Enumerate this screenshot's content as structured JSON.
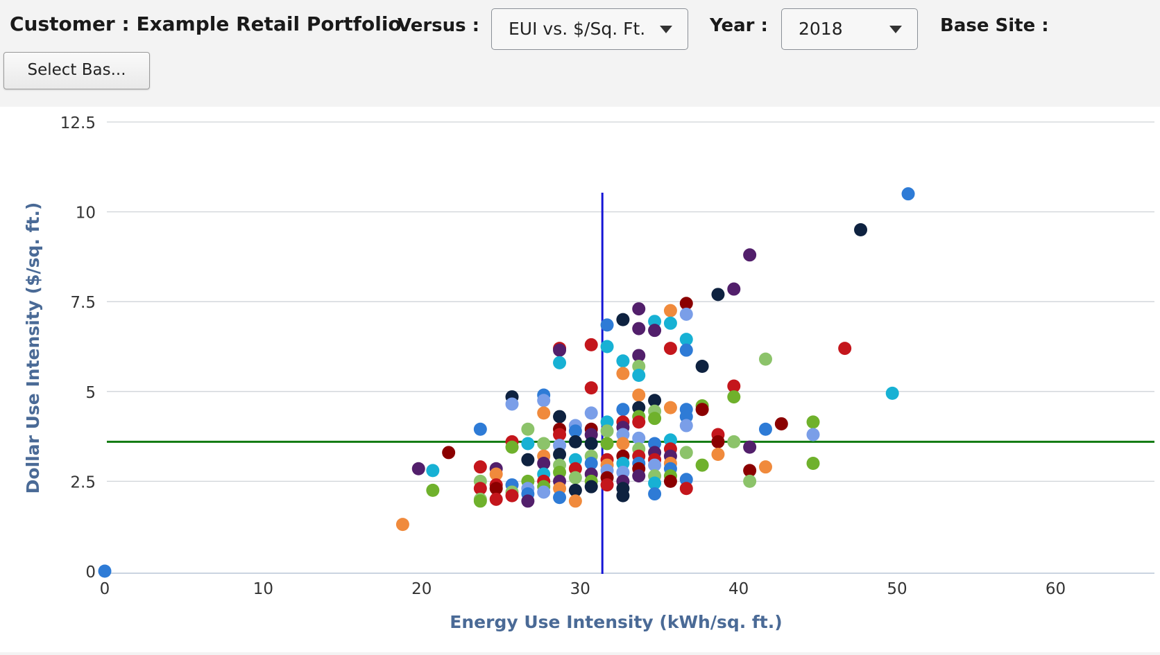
{
  "header": {
    "customer_label": "Customer : Example Retail Portfolio",
    "versus_label": "Versus :",
    "versus_value": "EUI vs. $/Sq. Ft.",
    "year_label": "Year :",
    "year_value": "2018",
    "base_site_label": "Base Site :",
    "select_button": "Select Bas..."
  },
  "colors": {
    "reference_vertical": "#1515d6",
    "reference_horizontal": "#117a11",
    "axis_title": "#4a6a96",
    "palette": [
      "#2e7bd6",
      "#0e2240",
      "#521f6b",
      "#c4161c",
      "#8b0000",
      "#f08a3c",
      "#8cc36a",
      "#17b1d4",
      "#7a9ee8",
      "#6fb12c"
    ]
  },
  "chart_data": {
    "type": "scatter",
    "xlabel": "Energy Use Intensity (kWh/sq. ft.)",
    "ylabel": "Dollar Use Intensity ($/sq. ft.)",
    "xlim": [
      0,
      63
    ],
    "ylim": [
      0,
      12.5
    ],
    "x_ticks": [
      "0",
      "10",
      "20",
      "30",
      "40",
      "50",
      "60"
    ],
    "y_ticks": [
      "0",
      "2.5",
      "5",
      "7.5",
      "10",
      "12.5"
    ],
    "grid": "horizontal",
    "reference_lines": {
      "x": 31.4,
      "y": 3.6
    },
    "points": [
      [
        0,
        0,
        0
      ],
      [
        18.8,
        1.3,
        5
      ],
      [
        19.8,
        2.85,
        2
      ],
      [
        20.7,
        2.8,
        7
      ],
      [
        20.7,
        2.25,
        9
      ],
      [
        21.7,
        3.3,
        4
      ],
      [
        23.7,
        3.95,
        0
      ],
      [
        23.7,
        2.9,
        3
      ],
      [
        23.7,
        2.5,
        6
      ],
      [
        23.7,
        2.3,
        3
      ],
      [
        23.7,
        2.0,
        6
      ],
      [
        23.7,
        1.95,
        9
      ],
      [
        24.7,
        2.85,
        2
      ],
      [
        24.7,
        2.7,
        5
      ],
      [
        24.7,
        2.4,
        3
      ],
      [
        24.7,
        2.3,
        4
      ],
      [
        24.7,
        2.0,
        3
      ],
      [
        25.7,
        4.85,
        1
      ],
      [
        25.7,
        4.65,
        8
      ],
      [
        25.7,
        3.6,
        3
      ],
      [
        25.7,
        3.45,
        9
      ],
      [
        25.7,
        2.4,
        0
      ],
      [
        25.7,
        2.2,
        6
      ],
      [
        25.7,
        2.1,
        3
      ],
      [
        26.7,
        3.95,
        6
      ],
      [
        26.7,
        3.55,
        7
      ],
      [
        26.7,
        3.1,
        1
      ],
      [
        26.7,
        2.5,
        9
      ],
      [
        26.7,
        2.3,
        8
      ],
      [
        26.7,
        2.15,
        0
      ],
      [
        26.7,
        1.95,
        2
      ],
      [
        27.7,
        4.9,
        0
      ],
      [
        27.7,
        4.75,
        8
      ],
      [
        27.7,
        4.4,
        5
      ],
      [
        27.7,
        3.55,
        6
      ],
      [
        27.7,
        3.2,
        5
      ],
      [
        27.7,
        3.0,
        2
      ],
      [
        27.7,
        2.7,
        7
      ],
      [
        27.7,
        2.5,
        3
      ],
      [
        27.7,
        2.35,
        9
      ],
      [
        27.7,
        2.2,
        8
      ],
      [
        28.7,
        6.2,
        3
      ],
      [
        28.7,
        6.15,
        2
      ],
      [
        28.7,
        5.8,
        7
      ],
      [
        28.7,
        4.3,
        1
      ],
      [
        28.7,
        3.95,
        4
      ],
      [
        28.7,
        3.8,
        3
      ],
      [
        28.7,
        3.5,
        8
      ],
      [
        28.7,
        3.25,
        1
      ],
      [
        28.7,
        2.95,
        6
      ],
      [
        28.7,
        2.75,
        9
      ],
      [
        28.7,
        2.5,
        2
      ],
      [
        28.7,
        2.3,
        5
      ],
      [
        28.7,
        2.05,
        0
      ],
      [
        29.7,
        4.05,
        8
      ],
      [
        29.7,
        3.9,
        0
      ],
      [
        29.7,
        3.6,
        1
      ],
      [
        29.7,
        3.1,
        7
      ],
      [
        29.7,
        2.85,
        3
      ],
      [
        29.7,
        2.6,
        6
      ],
      [
        29.7,
        2.25,
        1
      ],
      [
        29.7,
        1.95,
        5
      ],
      [
        30.7,
        6.3,
        3
      ],
      [
        30.7,
        5.1,
        3
      ],
      [
        30.7,
        4.4,
        8
      ],
      [
        30.7,
        3.95,
        4
      ],
      [
        30.7,
        3.8,
        2
      ],
      [
        30.7,
        3.55,
        1
      ],
      [
        30.7,
        3.2,
        6
      ],
      [
        30.7,
        3.0,
        0
      ],
      [
        30.7,
        2.7,
        2
      ],
      [
        30.7,
        2.5,
        9
      ],
      [
        30.7,
        2.35,
        1
      ],
      [
        31.7,
        6.85,
        0
      ],
      [
        31.7,
        6.25,
        7
      ],
      [
        31.7,
        4.15,
        7
      ],
      [
        31.7,
        3.9,
        6
      ],
      [
        31.7,
        3.55,
        9
      ],
      [
        31.7,
        3.1,
        3
      ],
      [
        31.7,
        2.95,
        5
      ],
      [
        31.7,
        2.8,
        8
      ],
      [
        31.7,
        2.6,
        4
      ],
      [
        31.7,
        2.4,
        3
      ],
      [
        32.7,
        7.0,
        1
      ],
      [
        32.7,
        5.85,
        7
      ],
      [
        32.7,
        5.5,
        5
      ],
      [
        32.7,
        4.5,
        0
      ],
      [
        32.7,
        4.15,
        3
      ],
      [
        32.7,
        4.0,
        2
      ],
      [
        32.7,
        3.8,
        8
      ],
      [
        32.7,
        3.55,
        5
      ],
      [
        32.7,
        3.2,
        4
      ],
      [
        32.7,
        3.0,
        7
      ],
      [
        32.7,
        2.75,
        8
      ],
      [
        32.7,
        2.5,
        2
      ],
      [
        32.7,
        2.3,
        1
      ],
      [
        32.7,
        2.1,
        1
      ],
      [
        33.7,
        7.3,
        2
      ],
      [
        33.7,
        6.75,
        2
      ],
      [
        33.7,
        6.0,
        2
      ],
      [
        33.7,
        5.7,
        6
      ],
      [
        33.7,
        5.45,
        7
      ],
      [
        33.7,
        4.9,
        5
      ],
      [
        33.7,
        4.55,
        1
      ],
      [
        33.7,
        4.3,
        9
      ],
      [
        33.7,
        4.15,
        3
      ],
      [
        33.7,
        3.7,
        8
      ],
      [
        33.7,
        3.4,
        6
      ],
      [
        33.7,
        3.2,
        3
      ],
      [
        33.7,
        3.0,
        0
      ],
      [
        33.7,
        2.85,
        4
      ],
      [
        33.7,
        2.65,
        2
      ],
      [
        34.7,
        6.95,
        7
      ],
      [
        34.7,
        6.7,
        2
      ],
      [
        34.7,
        4.75,
        1
      ],
      [
        34.7,
        4.45,
        6
      ],
      [
        34.7,
        4.25,
        9
      ],
      [
        34.7,
        3.55,
        0
      ],
      [
        34.7,
        3.3,
        2
      ],
      [
        34.7,
        3.1,
        3
      ],
      [
        34.7,
        2.95,
        8
      ],
      [
        34.7,
        2.65,
        6
      ],
      [
        34.7,
        2.45,
        7
      ],
      [
        34.7,
        2.15,
        0
      ],
      [
        35.7,
        7.25,
        5
      ],
      [
        35.7,
        6.9,
        7
      ],
      [
        35.7,
        6.2,
        3
      ],
      [
        35.7,
        4.55,
        5
      ],
      [
        35.7,
        3.65,
        7
      ],
      [
        35.7,
        3.4,
        3
      ],
      [
        35.7,
        3.2,
        2
      ],
      [
        35.7,
        3.0,
        5
      ],
      [
        35.7,
        2.85,
        0
      ],
      [
        35.7,
        2.65,
        9
      ],
      [
        35.7,
        2.5,
        4
      ],
      [
        36.7,
        7.45,
        4
      ],
      [
        36.7,
        7.15,
        8
      ],
      [
        36.7,
        6.45,
        7
      ],
      [
        36.7,
        6.15,
        0
      ],
      [
        36.7,
        4.5,
        0
      ],
      [
        36.7,
        4.3,
        0
      ],
      [
        36.7,
        4.05,
        8
      ],
      [
        36.7,
        3.3,
        6
      ],
      [
        36.7,
        2.55,
        0
      ],
      [
        36.7,
        2.3,
        3
      ],
      [
        37.7,
        5.7,
        1
      ],
      [
        37.7,
        4.6,
        9
      ],
      [
        37.7,
        4.5,
        4
      ],
      [
        37.7,
        2.95,
        9
      ],
      [
        38.7,
        7.7,
        1
      ],
      [
        38.7,
        3.8,
        3
      ],
      [
        38.7,
        3.6,
        4
      ],
      [
        38.7,
        3.25,
        5
      ],
      [
        39.7,
        7.85,
        2
      ],
      [
        39.7,
        5.15,
        3
      ],
      [
        39.7,
        4.85,
        9
      ],
      [
        39.7,
        3.6,
        6
      ],
      [
        40.7,
        8.8,
        2
      ],
      [
        40.7,
        3.45,
        2
      ],
      [
        40.7,
        2.8,
        4
      ],
      [
        40.7,
        2.5,
        6
      ],
      [
        41.7,
        5.9,
        6
      ],
      [
        41.7,
        3.95,
        0
      ],
      [
        41.7,
        2.9,
        5
      ],
      [
        42.7,
        4.1,
        4
      ],
      [
        44.7,
        4.15,
        9
      ],
      [
        44.7,
        3.8,
        8
      ],
      [
        44.7,
        3.0,
        9
      ],
      [
        46.7,
        6.2,
        3
      ],
      [
        47.7,
        9.5,
        1
      ],
      [
        49.7,
        4.95,
        7
      ],
      [
        50.7,
        10.5,
        0
      ]
    ]
  }
}
